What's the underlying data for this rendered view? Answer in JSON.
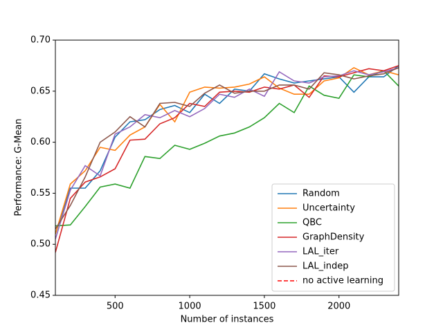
{
  "chart_data": {
    "type": "line",
    "xlabel": "Number of instances",
    "ylabel": "Performance: G-Mean",
    "x": [
      100,
      200,
      300,
      400,
      500,
      600,
      700,
      800,
      900,
      1000,
      1100,
      1200,
      1300,
      1400,
      1500,
      1600,
      1700,
      1800,
      1900,
      2000,
      2100,
      2200,
      2300,
      2400
    ],
    "xlim": [
      100,
      2400
    ],
    "xticks": [
      500,
      1000,
      1500,
      2000
    ],
    "ylim": [
      0.45,
      0.7
    ],
    "yticks": [
      0.45,
      {
        "value": 0.5,
        "label": "0.50"
      },
      0.55,
      {
        "value": 0.6,
        "label": "0.60"
      },
      0.65,
      {
        "value": 0.7,
        "label": "0.70"
      }
    ],
    "legend": "lower right",
    "series": [
      {
        "name": "Random",
        "color": "#1f77b4",
        "values": [
          0.51,
          0.555,
          0.555,
          0.572,
          0.605,
          0.62,
          0.622,
          0.632,
          0.636,
          0.629,
          0.647,
          0.638,
          0.652,
          0.65,
          0.667,
          0.662,
          0.658,
          0.66,
          0.662,
          0.664,
          0.649,
          0.664,
          0.664,
          0.675
        ]
      },
      {
        "name": "Uncertainty",
        "color": "#ff7f0e",
        "values": [
          0.51,
          0.559,
          0.572,
          0.595,
          0.592,
          0.607,
          0.615,
          0.637,
          0.62,
          0.649,
          0.654,
          0.653,
          0.654,
          0.657,
          0.664,
          0.653,
          0.647,
          0.647,
          0.66,
          0.663,
          0.673,
          0.666,
          0.67,
          0.666
        ]
      },
      {
        "name": "QBC",
        "color": "#2ca02c",
        "values": [
          0.518,
          0.519,
          0.537,
          0.556,
          0.559,
          0.555,
          0.586,
          0.584,
          0.597,
          0.593,
          0.599,
          0.606,
          0.609,
          0.615,
          0.624,
          0.638,
          0.629,
          0.655,
          0.646,
          0.643,
          0.666,
          0.664,
          0.67,
          0.655
        ]
      },
      {
        "name": "GraphDensity",
        "color": "#d62728",
        "values": [
          0.492,
          0.545,
          0.561,
          0.566,
          0.574,
          0.602,
          0.603,
          0.618,
          0.624,
          0.638,
          0.635,
          0.649,
          0.65,
          0.649,
          0.654,
          0.652,
          0.656,
          0.644,
          0.665,
          0.664,
          0.668,
          0.672,
          0.67,
          0.675
        ]
      },
      {
        "name": "LAL_iter",
        "color": "#9467bd",
        "values": [
          0.505,
          0.553,
          0.577,
          0.567,
          0.608,
          0.615,
          0.627,
          0.624,
          0.631,
          0.625,
          0.633,
          0.647,
          0.644,
          0.652,
          0.645,
          0.669,
          0.66,
          0.658,
          0.664,
          0.665,
          0.67,
          0.666,
          0.669,
          0.673
        ]
      },
      {
        "name": "LAL_indep",
        "color": "#8c564b",
        "values": [
          0.515,
          0.538,
          0.566,
          0.6,
          0.61,
          0.625,
          0.615,
          0.638,
          0.639,
          0.635,
          0.648,
          0.656,
          0.648,
          0.65,
          0.65,
          0.656,
          0.656,
          0.652,
          0.668,
          0.666,
          0.662,
          0.665,
          0.667,
          0.673
        ]
      },
      {
        "name": "no active learning",
        "color": "#ff0000",
        "dashed": true,
        "values": [
          null,
          null,
          null,
          null,
          null,
          null,
          null,
          null,
          null,
          null,
          null,
          null,
          null,
          null,
          null,
          null,
          null,
          null,
          null,
          null,
          null,
          null,
          null,
          null
        ]
      }
    ]
  }
}
